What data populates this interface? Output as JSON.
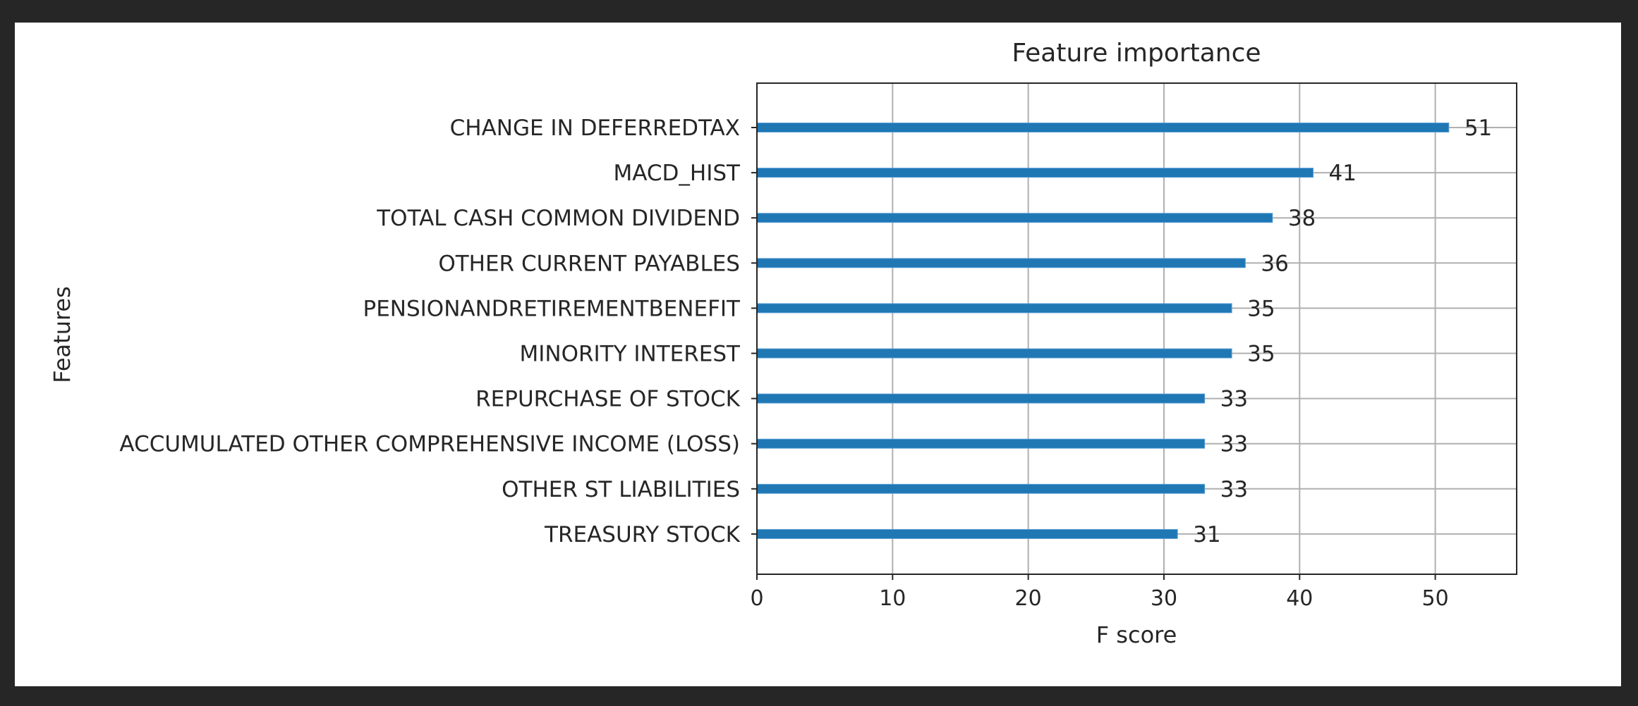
{
  "colors": {
    "background": "#262626",
    "plot_bg": "#ffffff",
    "bar": "#1f77b4",
    "grid": "#b0b0b0",
    "text": "#262626"
  },
  "chart_data": {
    "type": "bar",
    "orientation": "horizontal",
    "title": "Feature importance",
    "xlabel": "F score",
    "ylabel": "Features",
    "xlim": [
      0,
      56
    ],
    "xticks": [
      0,
      10,
      20,
      30,
      40,
      50
    ],
    "grid": true,
    "categories": [
      "CHANGE IN DEFERREDTAX",
      "MACD_HIST",
      "TOTAL CASH COMMON DIVIDEND",
      "OTHER CURRENT PAYABLES",
      "PENSIONANDRETIREMENTBENEFIT",
      "MINORITY INTEREST",
      "REPURCHASE OF STOCK",
      "ACCUMULATED OTHER COMPREHENSIVE INCOME (LOSS)",
      "OTHER ST LIABILITIES",
      "TREASURY STOCK"
    ],
    "values": [
      51,
      41,
      38,
      36,
      35,
      35,
      33,
      33,
      33,
      31
    ],
    "data_labels": [
      "51",
      "41",
      "38",
      "36",
      "35",
      "35",
      "33",
      "33",
      "33",
      "31"
    ]
  }
}
